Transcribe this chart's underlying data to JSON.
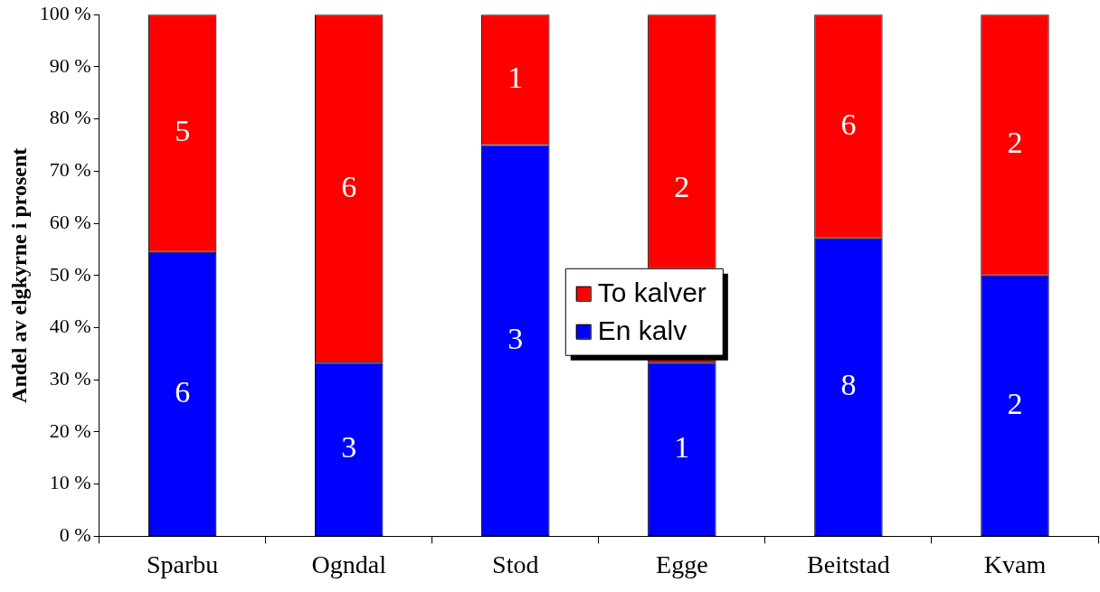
{
  "chart_data": {
    "type": "bar",
    "stacked": true,
    "ylabel": "Andel av elgkyrne i prosent",
    "categories": [
      "Sparbu",
      "Ogndal",
      "Stod",
      "Egge",
      "Beitstad",
      "Kvam"
    ],
    "series": [
      {
        "name": "En kalv",
        "color": "#0000ff",
        "values": [
          54.5,
          33.3,
          75,
          33.3,
          57.1,
          50
        ]
      },
      {
        "name": "To kalver",
        "color": "#ff0000",
        "values": [
          45.5,
          66.7,
          25,
          66.7,
          42.9,
          50
        ]
      }
    ],
    "annotations": [
      "6",
      "3",
      "3",
      "1",
      "8",
      "2",
      "5",
      "6",
      "1",
      "2",
      "6",
      "2"
    ],
    "ylim": [
      0,
      100
    ],
    "yticks": [
      {
        "value": 0,
        "label": "0 %"
      },
      {
        "value": 10,
        "label": "10 %"
      },
      {
        "value": 20,
        "label": "20 %"
      },
      {
        "value": 30,
        "label": "30 %"
      },
      {
        "value": 40,
        "label": "40 %"
      },
      {
        "value": 50,
        "label": "50 %"
      },
      {
        "value": 60,
        "label": "60 %"
      },
      {
        "value": 70,
        "label": "70 %"
      },
      {
        "value": 80,
        "label": "80 %"
      },
      {
        "value": 90,
        "label": "90 %"
      },
      {
        "value": 100,
        "label": "100 %"
      }
    ],
    "grid": false,
    "legend": "center"
  }
}
